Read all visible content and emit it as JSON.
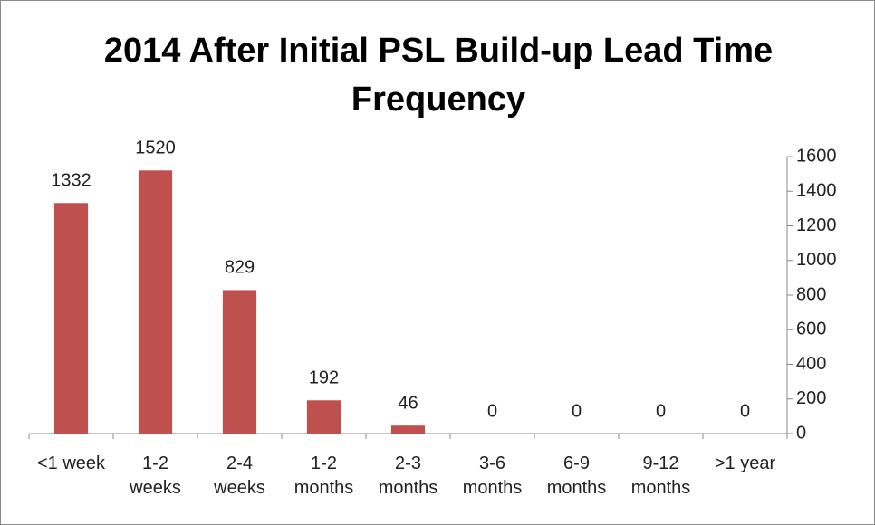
{
  "chart_data": {
    "type": "bar",
    "title": "2014 After Initial PSL Build-up Lead Time Frequency",
    "categories": [
      "<1 week",
      "1-2 weeks",
      "2-4 weeks",
      "1-2 months",
      "2-3 months",
      "3-6 months",
      "6-9 months",
      "9-12 months",
      ">1 year"
    ],
    "values": [
      1332,
      1520,
      829,
      192,
      46,
      0,
      0,
      0,
      0
    ],
    "color": "#c0504d",
    "ylim": [
      0,
      1600
    ],
    "yticks": [
      0,
      200,
      400,
      600,
      800,
      1000,
      1200,
      1400,
      1600
    ],
    "y_axis_side": "right",
    "grid": false
  }
}
